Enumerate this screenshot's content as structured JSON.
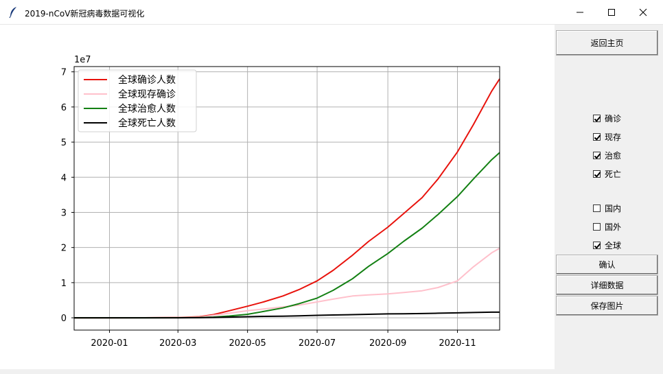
{
  "window": {
    "title": "2019-nCoV新冠病毒数据可视化",
    "icon": "feather-icon"
  },
  "panel": {
    "home_button": "返回主页",
    "metric_checks": [
      {
        "label": "确诊",
        "checked": true
      },
      {
        "label": "现存",
        "checked": true
      },
      {
        "label": "治愈",
        "checked": true
      },
      {
        "label": "死亡",
        "checked": true
      }
    ],
    "region_checks": [
      {
        "label": "国内",
        "checked": false
      },
      {
        "label": "国外",
        "checked": false
      },
      {
        "label": "全球",
        "checked": true
      }
    ],
    "confirm_button": "确认",
    "detail_button": "详细数据",
    "save_button": "保存图片"
  },
  "chart_data": {
    "type": "line",
    "title": "",
    "xlabel": "",
    "ylabel": "",
    "y_scale_label": "1e7",
    "grid": true,
    "legend_position": "top-left",
    "xlim": [
      "2019-12-01",
      "2020-12-08"
    ],
    "ylim": [
      -0.35,
      7.15
    ],
    "x_ticks": [
      "2020-01",
      "2020-03",
      "2020-05",
      "2020-07",
      "2020-09",
      "2020-11"
    ],
    "y_ticks": [
      0,
      1,
      2,
      3,
      4,
      5,
      6,
      7
    ],
    "x": [
      "2019-12-01",
      "2020-01-01",
      "2020-02-01",
      "2020-03-01",
      "2020-03-20",
      "2020-04-01",
      "2020-04-15",
      "2020-05-01",
      "2020-05-15",
      "2020-06-01",
      "2020-06-15",
      "2020-07-01",
      "2020-07-15",
      "2020-08-01",
      "2020-08-15",
      "2020-09-01",
      "2020-09-15",
      "2020-10-01",
      "2020-10-15",
      "2020-11-01",
      "2020-11-15",
      "2020-12-01",
      "2020-12-08"
    ],
    "series": [
      {
        "name": "全球确诊人数",
        "color": "#e8120c",
        "values": [
          0,
          0,
          0.001,
          0.01,
          0.03,
          0.09,
          0.2,
          0.33,
          0.45,
          0.62,
          0.8,
          1.05,
          1.35,
          1.78,
          2.17,
          2.58,
          2.97,
          3.42,
          3.95,
          4.72,
          5.5,
          6.45,
          6.8
        ]
      },
      {
        "name": "全球现存确诊",
        "color": "#ffc0cb",
        "values": [
          0,
          0,
          0.001,
          0.008,
          0.02,
          0.07,
          0.13,
          0.2,
          0.25,
          0.31,
          0.36,
          0.45,
          0.53,
          0.62,
          0.65,
          0.68,
          0.72,
          0.77,
          0.86,
          1.05,
          1.45,
          1.85,
          1.98
        ]
      },
      {
        "name": "全球治愈人数",
        "color": "#138013",
        "values": [
          0,
          0,
          0.0005,
          0.002,
          0.005,
          0.02,
          0.05,
          0.1,
          0.18,
          0.28,
          0.4,
          0.56,
          0.78,
          1.11,
          1.46,
          1.83,
          2.18,
          2.55,
          2.94,
          3.45,
          3.95,
          4.5,
          4.7
        ]
      },
      {
        "name": "全球死亡人数",
        "color": "#000000",
        "values": [
          0,
          0,
          0.0001,
          0.0005,
          0.003,
          0.01,
          0.02,
          0.03,
          0.04,
          0.045,
          0.055,
          0.07,
          0.08,
          0.09,
          0.1,
          0.11,
          0.115,
          0.12,
          0.13,
          0.14,
          0.15,
          0.16,
          0.16
        ]
      }
    ]
  }
}
